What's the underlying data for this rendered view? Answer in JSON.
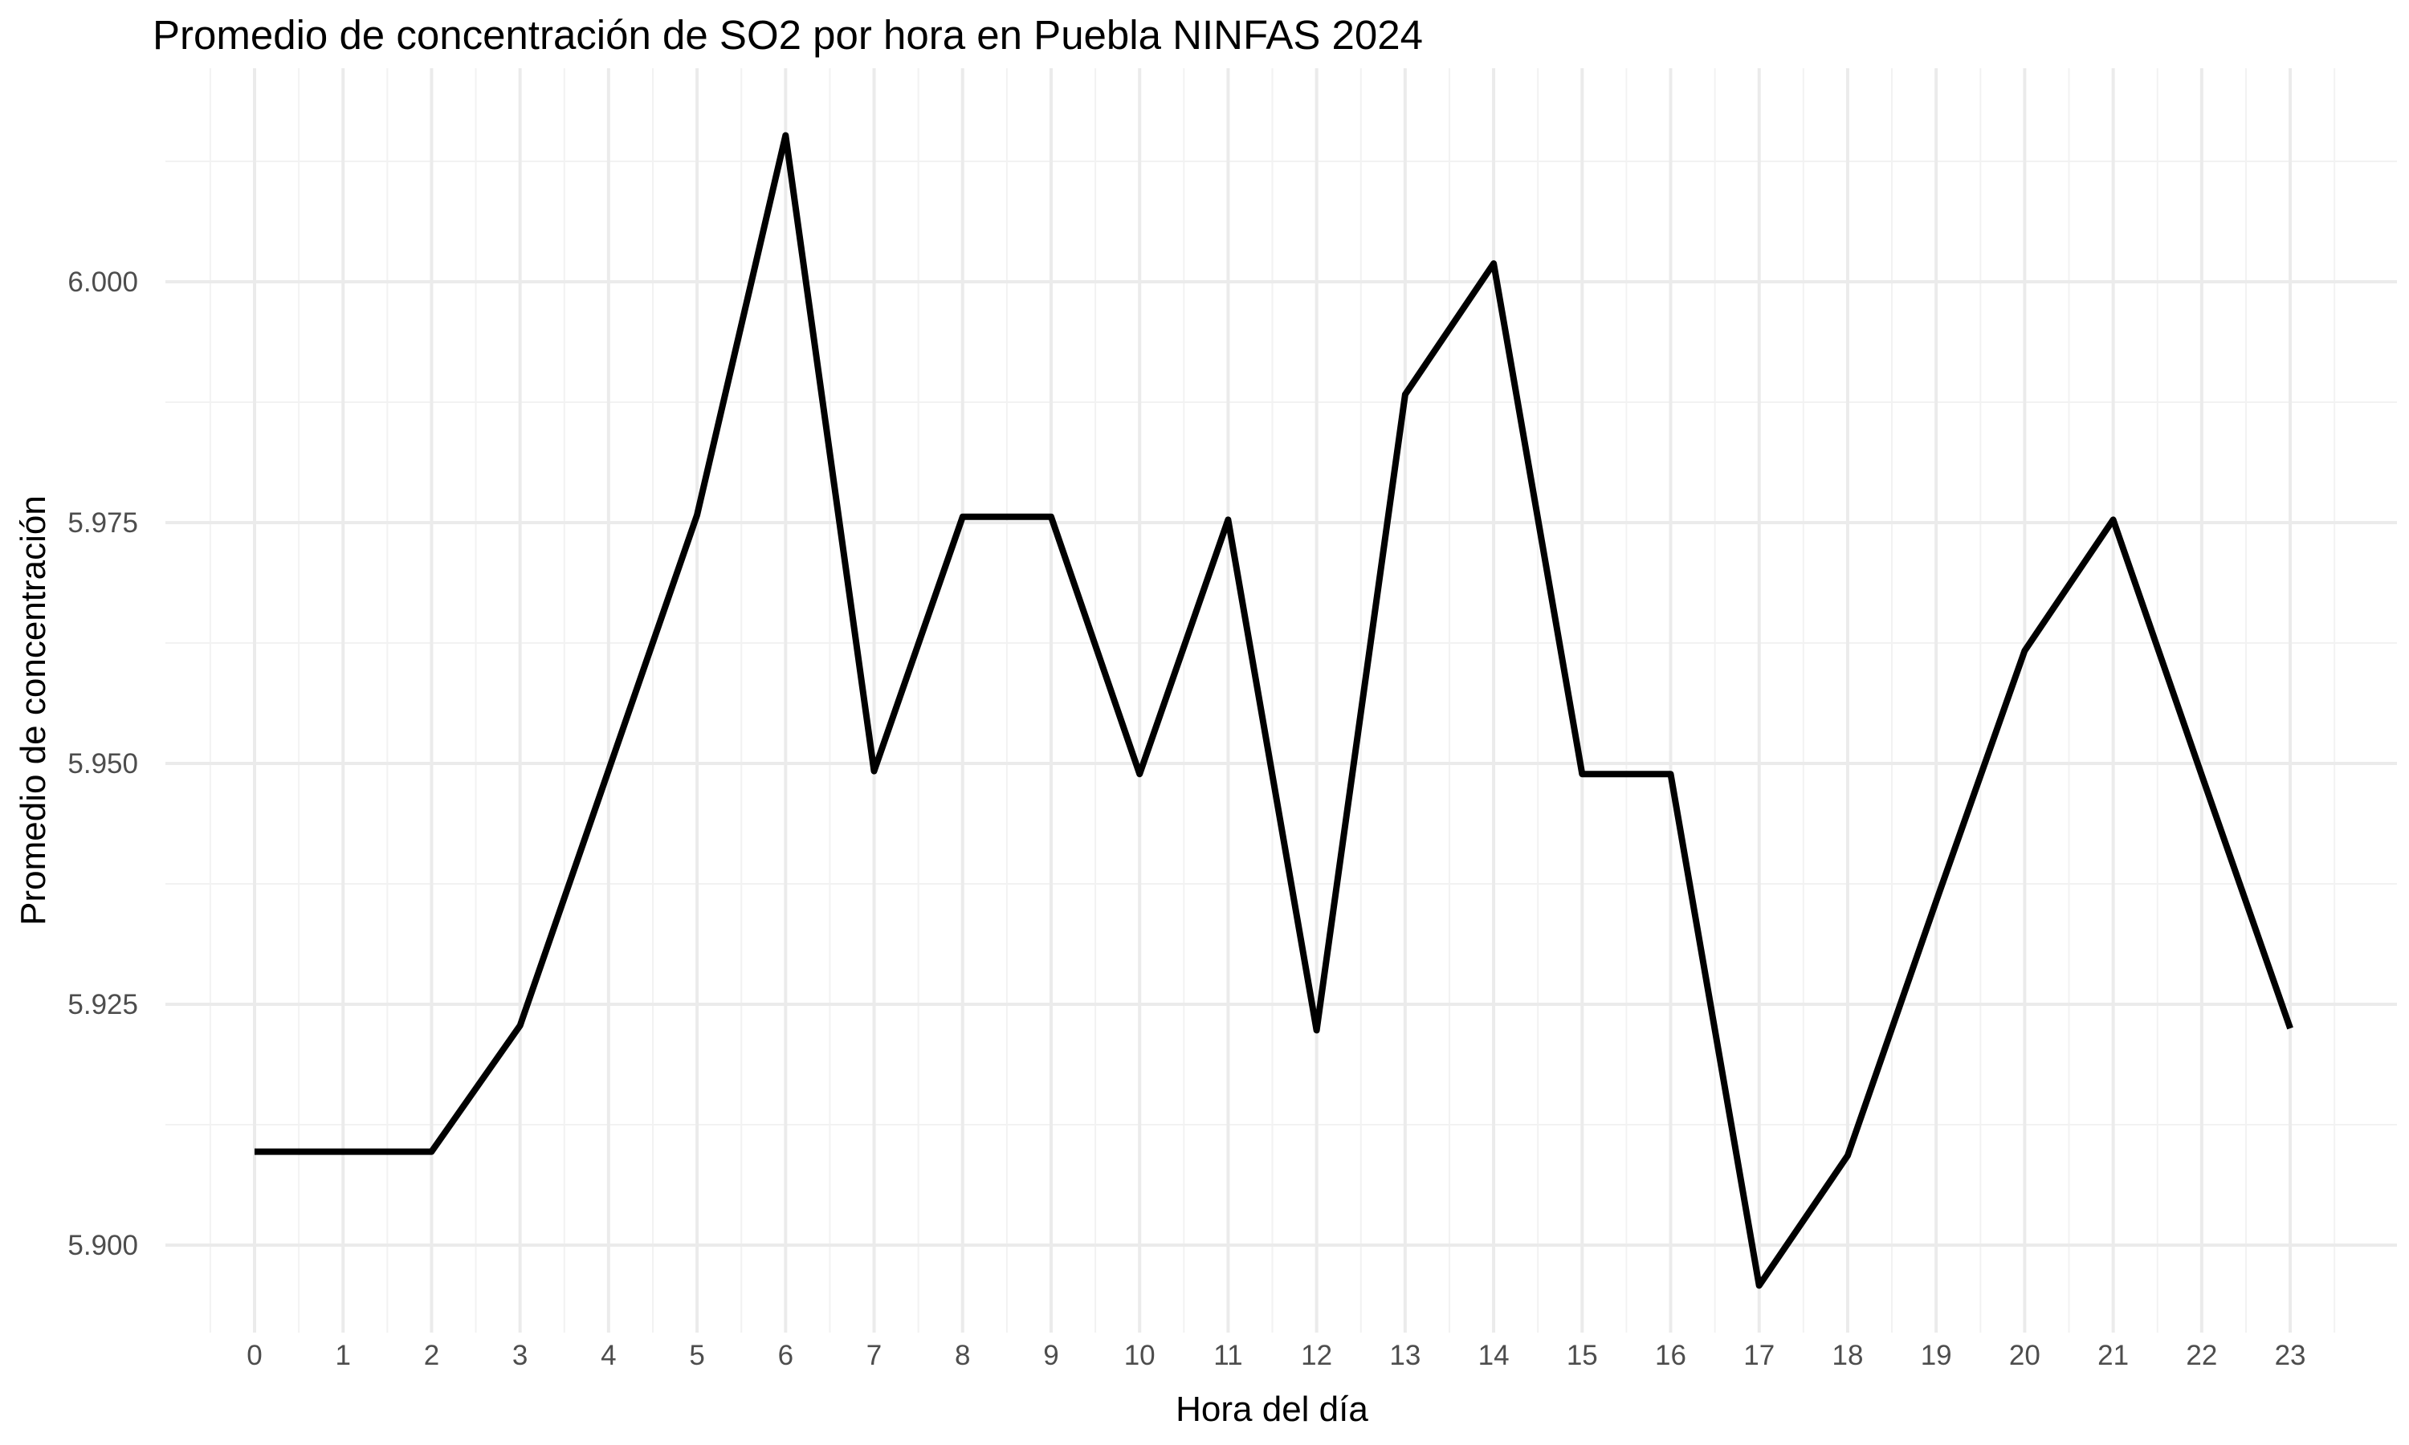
{
  "chart_data": {
    "type": "line",
    "title": "Promedio de concentración de SO2 por hora en Puebla NINFAS 2024",
    "xlabel": "Hora del día",
    "ylabel": "Promedio de concentración",
    "x": [
      0,
      1,
      2,
      3,
      4,
      5,
      6,
      7,
      8,
      9,
      10,
      11,
      12,
      13,
      14,
      15,
      16,
      17,
      18,
      19,
      20,
      21,
      22,
      23
    ],
    "x_tick_labels": [
      "0",
      "1",
      "2",
      "3",
      "4",
      "5",
      "6",
      "7",
      "8",
      "9",
      "10",
      "11",
      "12",
      "13",
      "14",
      "15",
      "16",
      "17",
      "18",
      "19",
      "20",
      "21",
      "22",
      "23"
    ],
    "series": [
      {
        "values": [
          5.9097,
          5.9097,
          5.9097,
          5.9228,
          5.9493,
          5.9758,
          6.0152,
          5.9492,
          5.9756,
          5.9756,
          5.9489,
          5.9753,
          5.9223,
          5.9883,
          6.0019,
          5.9489,
          5.9489,
          5.8958,
          5.9093,
          5.9357,
          5.9617,
          5.9753,
          5.9488,
          5.9225
        ],
        "color": "#000000"
      }
    ],
    "ylim": [
      5.8935,
      6.0175
    ],
    "xlim": [
      -0.55,
      23.55
    ],
    "y_ticks": [
      5.9,
      5.925,
      5.95,
      5.975,
      6.0
    ],
    "y_tick_labels": [
      "5.900",
      "5.925",
      "5.950",
      "5.975",
      "6.000"
    ],
    "grid": true,
    "legend": "none"
  }
}
